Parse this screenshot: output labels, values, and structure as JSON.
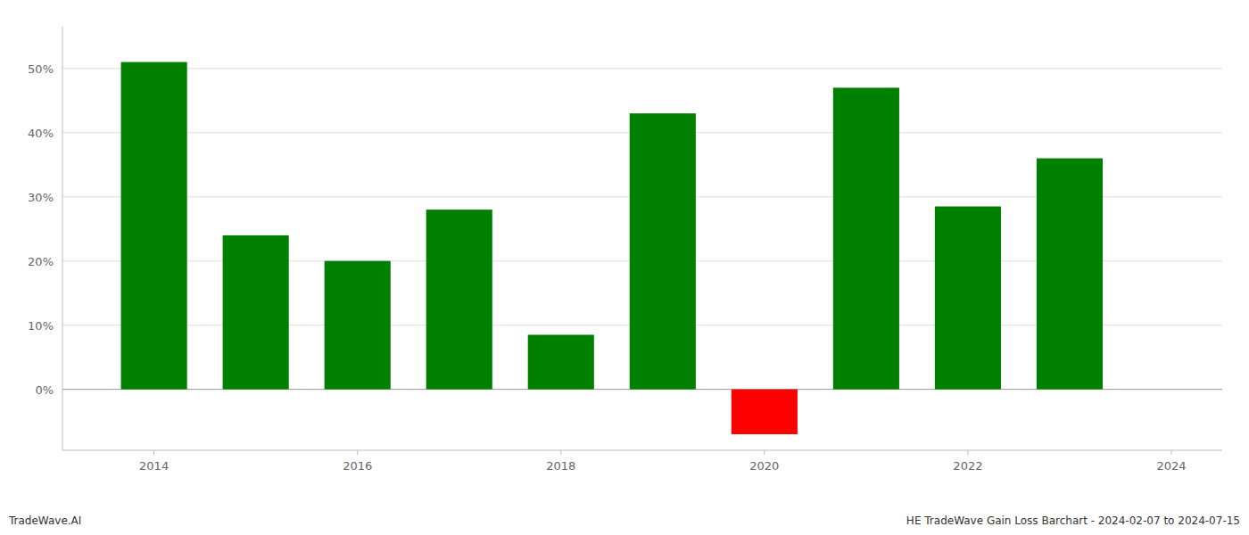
{
  "chart_data": {
    "type": "bar",
    "x": [
      2014,
      2015,
      2016,
      2017,
      2018,
      2019,
      2020,
      2021,
      2022,
      2023
    ],
    "values": [
      0.51,
      0.24,
      0.2,
      0.28,
      0.085,
      0.43,
      -0.07,
      0.47,
      0.285,
      0.36
    ],
    "colors": [
      "#008000",
      "#008000",
      "#008000",
      "#008000",
      "#008000",
      "#008000",
      "#ff0000",
      "#008000",
      "#008000",
      "#008000"
    ],
    "xlim": [
      2013.1,
      2024.5
    ],
    "xticks": [
      2014,
      2016,
      2018,
      2020,
      2022,
      2024
    ],
    "ylim": [
      -0.095,
      0.565
    ],
    "yticks": [
      {
        "value": 0,
        "label": "0%"
      },
      {
        "value": 0.1,
        "label": "10%"
      },
      {
        "value": 0.2,
        "label": "20%"
      },
      {
        "value": 0.3,
        "label": "30%"
      },
      {
        "value": 0.4,
        "label": "40%"
      },
      {
        "value": 0.5,
        "label": "50%"
      }
    ],
    "grid": true,
    "annotations": [
      "TradeWave.AI",
      "HE TradeWave Gain Loss Barchart - 2024-02-07 to 2024-07-15"
    ]
  }
}
